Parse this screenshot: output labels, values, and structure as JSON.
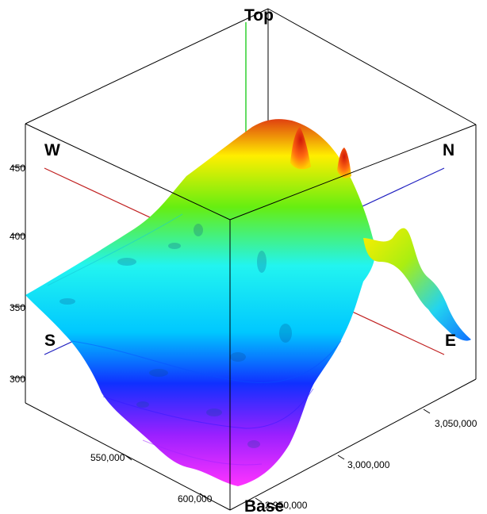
{
  "labels": {
    "top": "Top",
    "base": "Base",
    "west": "W",
    "north": "N",
    "south": "S",
    "east": "E"
  },
  "z_ticks": [
    "450",
    "400",
    "350",
    "300"
  ],
  "x_ticks": [
    "550,000",
    "600,000"
  ],
  "y_ticks": [
    "3,050,000",
    "3,000,000",
    "2,950,000"
  ],
  "colors": {
    "low": "#ff33ff",
    "mid_low": "#1030ff",
    "mid": "#22f0f0",
    "mid_high": "#55ee11",
    "high": "#ffee00",
    "peak": "#e03010",
    "ew_line": "#c02020",
    "ns_line": "#2020c0",
    "vertical_line": "#22cc22"
  },
  "icons": {
    "vertical_axis": "vertical-axis-line-icon"
  }
}
